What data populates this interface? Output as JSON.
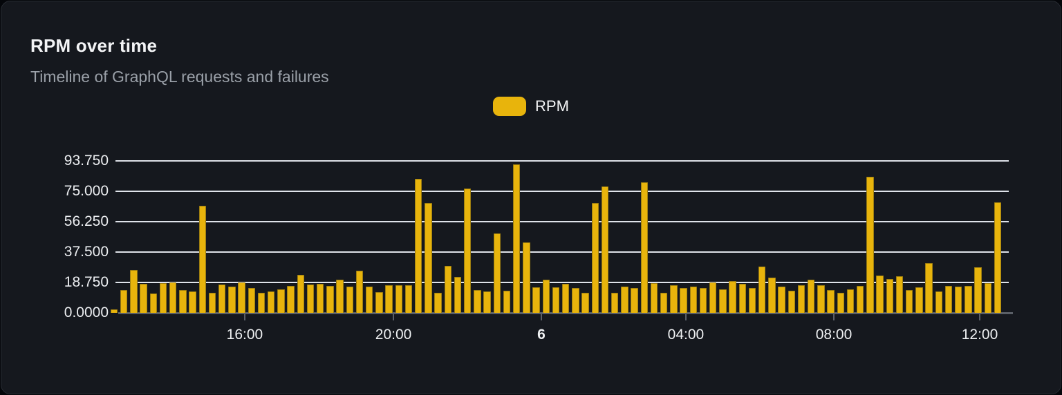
{
  "card": {
    "title": "RPM over time",
    "subtitle": "Timeline of GraphQL requests and failures"
  },
  "legend": {
    "label": "RPM",
    "swatch_color": "#e8b40c"
  },
  "chart_data": {
    "type": "bar",
    "title": "RPM over time",
    "subtitle": "Timeline of GraphQL requests and failures",
    "series_name": "RPM",
    "bar_color": "#e8b40c",
    "grid": true,
    "legend_position": "top-center",
    "ylim": [
      0,
      96.25
    ],
    "y_ticks": [
      {
        "label": "0.0000",
        "value": 0
      },
      {
        "label": "18.750",
        "value": 18.75
      },
      {
        "label": "37.500",
        "value": 37.5
      },
      {
        "label": "56.250",
        "value": 56.25
      },
      {
        "label": "75.000",
        "value": 75
      },
      {
        "label": "93.750",
        "value": 93.75
      }
    ],
    "x_ticks": [
      {
        "label": "16:00",
        "pos": 0.1447,
        "bold": false
      },
      {
        "label": "20:00",
        "pos": 0.3112,
        "bold": false
      },
      {
        "label": "6",
        "pos": 0.4768,
        "bold": true
      },
      {
        "label": "04:00",
        "pos": 0.6385,
        "bold": false
      },
      {
        "label": "08:00",
        "pos": 0.8042,
        "bold": false
      },
      {
        "label": "12:00",
        "pos": 0.9675,
        "bold": false
      }
    ],
    "values": [
      2,
      14,
      26.5,
      17.8,
      12,
      18.5,
      18.6,
      14,
      13.1,
      66,
      12.2,
      17.5,
      16.3,
      18.9,
      15.3,
      12.4,
      13.2,
      14.6,
      16.8,
      23.4,
      17.5,
      17.8,
      16.5,
      20.5,
      16.3,
      26,
      16.3,
      12.8,
      17,
      17.2,
      17.2,
      82.5,
      67.7,
      12.2,
      28.8,
      22.2,
      76.7,
      14.2,
      13.3,
      48.8,
      13.8,
      91.6,
      43.3,
      15.6,
      20.3,
      15.6,
      18,
      15.3,
      12.5,
      67.6,
      78,
      12.2,
      16,
      15.3,
      80.5,
      18.2,
      12.2,
      17.2,
      15.3,
      16.3,
      15.2,
      18.9,
      14.5,
      19.5,
      17.9,
      15.2,
      28.7,
      21.7,
      16,
      13.8,
      17.2,
      20.6,
      17,
      14.2,
      12.2,
      14.6,
      16.8,
      83.9,
      22.9,
      21,
      22.7,
      14.2,
      15.8,
      30.5,
      13.2,
      16.8,
      16,
      16.5,
      28,
      18.5,
      68.3
    ]
  }
}
